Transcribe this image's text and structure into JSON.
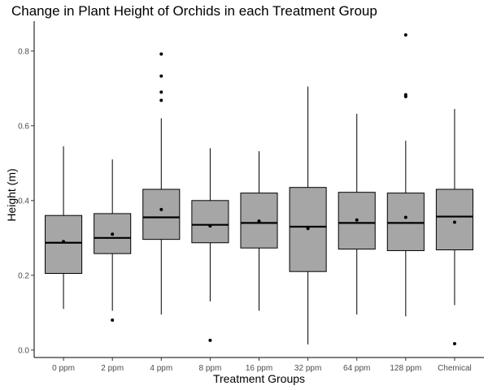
{
  "chart_data": {
    "type": "box",
    "title": "Change in Plant Height of Orchids in each Treatment Group",
    "xlabel": "Treatment Groups",
    "ylabel": "Height (m)",
    "ylim": [
      -0.02,
      0.88
    ],
    "yticks": [
      0.0,
      0.2,
      0.4,
      0.6,
      0.8
    ],
    "ytick_labels": [
      "0.0",
      "0.2",
      "0.4",
      "0.6",
      "0.8"
    ],
    "categories": [
      "0 ppm",
      "2 ppm",
      "4 ppm",
      "8 ppm",
      "16 ppm",
      "32 ppm",
      "64 ppm",
      "128 ppm",
      "Chemical"
    ],
    "box_fill": "#a6a6a6",
    "grid": false,
    "boxes": [
      {
        "whisker_low": 0.11,
        "q1": 0.205,
        "median": 0.287,
        "q3": 0.36,
        "whisker_high": 0.545,
        "mean": 0.29,
        "outliers": []
      },
      {
        "whisker_low": 0.105,
        "q1": 0.258,
        "median": 0.3,
        "q3": 0.365,
        "whisker_high": 0.51,
        "mean": 0.31,
        "outliers": [
          0.08
        ]
      },
      {
        "whisker_low": 0.095,
        "q1": 0.296,
        "median": 0.355,
        "q3": 0.43,
        "whisker_high": 0.62,
        "mean": 0.376,
        "outliers": [
          0.668,
          0.69,
          0.733,
          0.792
        ]
      },
      {
        "whisker_low": 0.13,
        "q1": 0.287,
        "median": 0.335,
        "q3": 0.4,
        "whisker_high": 0.54,
        "mean": 0.332,
        "outliers": [
          0.026
        ]
      },
      {
        "whisker_low": 0.105,
        "q1": 0.273,
        "median": 0.34,
        "q3": 0.42,
        "whisker_high": 0.532,
        "mean": 0.345,
        "outliers": []
      },
      {
        "whisker_low": 0.015,
        "q1": 0.21,
        "median": 0.33,
        "q3": 0.435,
        "whisker_high": 0.705,
        "mean": 0.325,
        "outliers": []
      },
      {
        "whisker_low": 0.095,
        "q1": 0.27,
        "median": 0.34,
        "q3": 0.422,
        "whisker_high": 0.632,
        "mean": 0.348,
        "outliers": []
      },
      {
        "whisker_low": 0.09,
        "q1": 0.266,
        "median": 0.34,
        "q3": 0.42,
        "whisker_high": 0.56,
        "mean": 0.355,
        "outliers": [
          0.678,
          0.683,
          0.843
        ]
      },
      {
        "whisker_low": 0.12,
        "q1": 0.268,
        "median": 0.357,
        "q3": 0.43,
        "whisker_high": 0.645,
        "mean": 0.342,
        "outliers": [
          0.017
        ]
      }
    ]
  }
}
